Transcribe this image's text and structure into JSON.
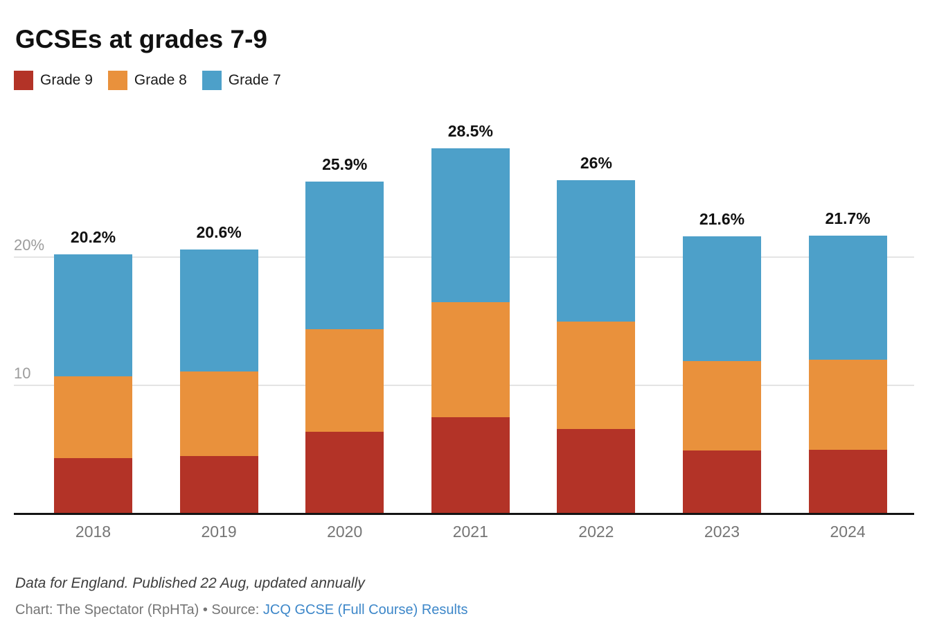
{
  "title": "GCSEs at grades 7-9",
  "legend": [
    {
      "label": "Grade 9",
      "color": "#b33327"
    },
    {
      "label": "Grade 8",
      "color": "#e9913c"
    },
    {
      "label": "Grade 7",
      "color": "#4da0c9"
    }
  ],
  "chart_data": {
    "type": "bar",
    "stacked": true,
    "title": "GCSEs at grades 7-9",
    "categories": [
      "2018",
      "2019",
      "2020",
      "2021",
      "2022",
      "2023",
      "2024"
    ],
    "series": [
      {
        "name": "Grade 9",
        "color": "#b33327",
        "values": [
          4.3,
          4.5,
          6.4,
          7.5,
          6.6,
          4.9,
          5.0
        ]
      },
      {
        "name": "Grade 8",
        "color": "#e9913c",
        "values": [
          6.4,
          6.6,
          8.0,
          9.0,
          8.4,
          7.0,
          7.0
        ]
      },
      {
        "name": "Grade 7",
        "color": "#4da0c9",
        "values": [
          9.5,
          9.5,
          11.5,
          12.0,
          11.0,
          9.7,
          9.7
        ]
      }
    ],
    "totals": [
      20.2,
      20.6,
      25.9,
      28.5,
      26,
      21.6,
      21.7
    ],
    "total_labels": [
      "20.2%",
      "20.6%",
      "25.9%",
      "28.5%",
      "26%",
      "21.6%",
      "21.7%"
    ],
    "y_ticks": [
      {
        "value": 10,
        "label": "10"
      },
      {
        "value": 20,
        "label": "20%"
      }
    ],
    "ylim": [
      0,
      30
    ],
    "xlabel": "",
    "ylabel": "",
    "grid": "horizontal",
    "legend_position": "top"
  },
  "footer": {
    "note": "Data for England. Published 22 Aug, updated annually",
    "byline_prefix": "Chart: The Spectator (RpHTa) • Source: ",
    "source_link_text": "JCQ GCSE (Full Course) Results"
  },
  "colors": {
    "grade9": "#b33327",
    "grade8": "#e9913c",
    "grade7": "#4da0c9",
    "axis": "#141414",
    "gridline": "#e4e4e4",
    "y_tick_text": "#9c9c9c",
    "x_tick_text": "#757575",
    "link": "#3d87c9"
  }
}
